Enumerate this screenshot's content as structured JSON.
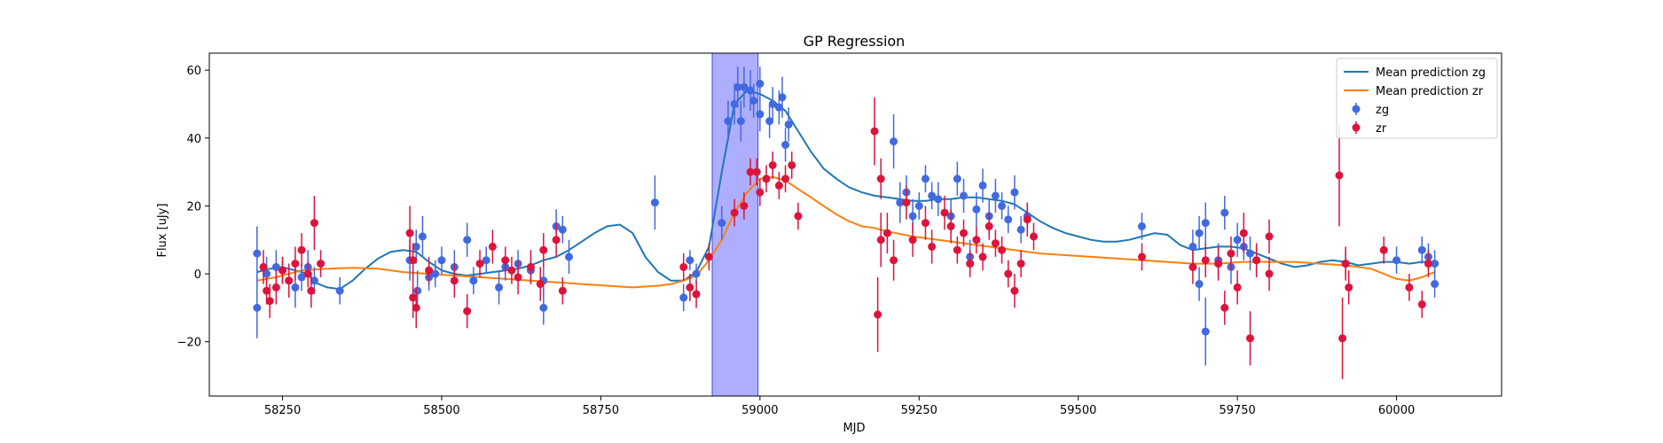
{
  "chart_data": {
    "type": "scatter",
    "title": "GP Regression",
    "xlabel": "MJD",
    "ylabel": "Flux [uJy]",
    "xlim": [
      58135,
      60165
    ],
    "ylim": [
      -36,
      65
    ],
    "xticks": [
      58250,
      58500,
      58750,
      59000,
      59250,
      59500,
      59750,
      60000
    ],
    "yticks": [
      -20,
      0,
      20,
      40,
      60
    ],
    "legend_position": "top-right",
    "shaded_region": {
      "x0": 58925,
      "x1": 58997,
      "color": "#aaaaff"
    },
    "colors": {
      "zg_line": "#1f77b4",
      "zr_line": "#ff7f0e",
      "zg_points": "#4169e1",
      "zr_points": "#dc143c"
    },
    "lines": [
      {
        "name": "Mean prediction zg",
        "color": "#1f77b4",
        "x": [
          58210,
          58230,
          58250,
          58270,
          58290,
          58300,
          58320,
          58340,
          58360,
          58380,
          58400,
          58420,
          58440,
          58460,
          58480,
          58500,
          58520,
          58540,
          58560,
          58580,
          58600,
          58620,
          58640,
          58660,
          58680,
          58700,
          58720,
          58740,
          58760,
          58780,
          58800,
          58820,
          58840,
          58860,
          58880,
          58900,
          58920,
          58940,
          58960,
          58980,
          59000,
          59020,
          59040,
          59060,
          59080,
          59100,
          59120,
          59140,
          59160,
          59180,
          59200,
          59220,
          59240,
          59260,
          59280,
          59300,
          59320,
          59340,
          59360,
          59380,
          59400,
          59420,
          59440,
          59460,
          59480,
          59500,
          59520,
          59540,
          59560,
          59580,
          59600,
          59620,
          59640,
          59660,
          59680,
          59700,
          59720,
          59740,
          59760,
          59780,
          59800,
          59820,
          59840,
          59860,
          59880,
          59900,
          59920,
          59940,
          59960,
          59980,
          60000,
          60020,
          60040,
          60060
        ],
        "y": [
          0.5,
          1.5,
          2.0,
          1.0,
          0,
          -2.5,
          -4.0,
          -4.5,
          -2.0,
          1.5,
          4.5,
          6.5,
          7.0,
          6.5,
          3.5,
          1.0,
          0,
          -0.5,
          0,
          0.5,
          1.0,
          1.5,
          2.5,
          4.0,
          5.0,
          7.0,
          9.5,
          12.0,
          14.0,
          14.5,
          12.0,
          5.0,
          0.5,
          -2.0,
          -2.0,
          0.5,
          8.0,
          30.0,
          50.0,
          54.0,
          53.0,
          51.0,
          48.0,
          42.0,
          36.0,
          31.0,
          28.0,
          25.5,
          24.0,
          23.0,
          22.5,
          22.0,
          21.5,
          21.5,
          22.0,
          22.0,
          22.5,
          22.5,
          22.0,
          21.5,
          20.5,
          18.0,
          15.5,
          13.5,
          12.0,
          11.0,
          10.0,
          9.5,
          9.5,
          10.0,
          11.0,
          12.0,
          11.5,
          8.5,
          7.0,
          7.5,
          8.0,
          8.0,
          7.5,
          6.0,
          4.5,
          3.0,
          2.0,
          2.5,
          3.5,
          4.0,
          3.5,
          2.5,
          3.0,
          3.5,
          3.5,
          3.0,
          3.5,
          3.5
        ]
      },
      {
        "name": "Mean prediction zr",
        "color": "#ff7f0e",
        "x": [
          58210,
          58240,
          58280,
          58320,
          58360,
          58400,
          58440,
          58480,
          58520,
          58560,
          58600,
          58640,
          58680,
          58720,
          58760,
          58800,
          58840,
          58860,
          58880,
          58900,
          58920,
          58940,
          58960,
          58980,
          59000,
          59020,
          59040,
          59060,
          59080,
          59100,
          59120,
          59140,
          59160,
          59180,
          59200,
          59240,
          59280,
          59320,
          59360,
          59400,
          59440,
          59480,
          59520,
          59560,
          59600,
          59640,
          59680,
          59720,
          59760,
          59800,
          59840,
          59880,
          59920,
          59940,
          59960,
          59980,
          60000,
          60020,
          60040,
          60060
        ],
        "y": [
          -2.0,
          -1.0,
          1.0,
          1.5,
          1.8,
          1.5,
          0.5,
          0,
          -0.5,
          -1.0,
          -1.5,
          -2.0,
          -2.5,
          -3.0,
          -3.5,
          -4.0,
          -3.5,
          -3.0,
          -2.0,
          -0.5,
          4.0,
          10.0,
          18.0,
          24.0,
          28.0,
          28.5,
          27.5,
          25.0,
          22.5,
          20.0,
          17.5,
          15.5,
          14.0,
          13.5,
          12.5,
          11.0,
          10.0,
          9.0,
          8.0,
          7.0,
          6.0,
          5.5,
          5.0,
          4.5,
          4.0,
          3.5,
          3.0,
          3.0,
          3.5,
          3.5,
          3.5,
          3.0,
          2.5,
          2.0,
          1.5,
          0,
          -1.5,
          -2.0,
          -1.0,
          0.5
        ]
      }
    ],
    "series": [
      {
        "name": "zg",
        "color": "#4169e1",
        "points": [
          [
            58210,
            6,
            8
          ],
          [
            58210,
            -10,
            9
          ],
          [
            58225,
            0,
            5
          ],
          [
            58240,
            2,
            5
          ],
          [
            58250,
            1,
            4
          ],
          [
            58260,
            -2,
            5
          ],
          [
            58270,
            -4,
            6
          ],
          [
            58280,
            -1,
            4
          ],
          [
            58290,
            2,
            5
          ],
          [
            58300,
            -2,
            4
          ],
          [
            58340,
            -5,
            4
          ],
          [
            58450,
            4,
            6
          ],
          [
            58460,
            8,
            5
          ],
          [
            58462,
            -5,
            6
          ],
          [
            58470,
            11,
            6
          ],
          [
            58480,
            -1,
            4
          ],
          [
            58490,
            0,
            4
          ],
          [
            58500,
            4,
            4
          ],
          [
            58520,
            2,
            5
          ],
          [
            58540,
            10,
            5
          ],
          [
            58550,
            -2,
            4
          ],
          [
            58570,
            4,
            4
          ],
          [
            58590,
            -4,
            5
          ],
          [
            58600,
            2,
            4
          ],
          [
            58620,
            3,
            4
          ],
          [
            58640,
            1,
            4
          ],
          [
            58660,
            -2,
            5
          ],
          [
            58660,
            -10,
            5
          ],
          [
            58680,
            14,
            5
          ],
          [
            58690,
            13,
            4
          ],
          [
            58700,
            5,
            5
          ],
          [
            58835,
            21,
            8
          ],
          [
            58880,
            -7,
            4
          ],
          [
            58890,
            4,
            3
          ],
          [
            58900,
            0,
            3
          ],
          [
            58940,
            15,
            5
          ],
          [
            58950,
            45,
            6
          ],
          [
            58960,
            50,
            6
          ],
          [
            58965,
            55,
            6
          ],
          [
            58970,
            45,
            6
          ],
          [
            58975,
            55,
            6
          ],
          [
            58985,
            54,
            6
          ],
          [
            58990,
            51,
            5
          ],
          [
            59000,
            56,
            5
          ],
          [
            59000,
            47,
            5
          ],
          [
            59015,
            45,
            5
          ],
          [
            59020,
            50,
            5
          ],
          [
            59030,
            49,
            5
          ],
          [
            59035,
            52,
            6
          ],
          [
            59040,
            38,
            5
          ],
          [
            59045,
            44,
            5
          ],
          [
            59210,
            39,
            8
          ],
          [
            59220,
            21,
            6
          ],
          [
            59230,
            24,
            5
          ],
          [
            59240,
            17,
            5
          ],
          [
            59250,
            20,
            4
          ],
          [
            59260,
            28,
            4
          ],
          [
            59270,
            23,
            4
          ],
          [
            59280,
            22,
            5
          ],
          [
            59300,
            17,
            5
          ],
          [
            59310,
            28,
            5
          ],
          [
            59320,
            23,
            5
          ],
          [
            59330,
            5,
            5
          ],
          [
            59340,
            19,
            5
          ],
          [
            59350,
            26,
            5
          ],
          [
            59360,
            17,
            5
          ],
          [
            59370,
            23,
            5
          ],
          [
            59380,
            20,
            4
          ],
          [
            59390,
            16,
            4
          ],
          [
            59400,
            24,
            5
          ],
          [
            59410,
            13,
            4
          ],
          [
            59420,
            17,
            4
          ],
          [
            59600,
            14,
            4
          ],
          [
            59680,
            8,
            5
          ],
          [
            59690,
            12,
            5
          ],
          [
            59690,
            -3,
            5
          ],
          [
            59700,
            15,
            6
          ],
          [
            59700,
            -17,
            10
          ],
          [
            59720,
            4,
            5
          ],
          [
            59730,
            18,
            5
          ],
          [
            59740,
            2,
            5
          ],
          [
            59750,
            10,
            5
          ],
          [
            59760,
            8,
            4
          ],
          [
            59770,
            6,
            5
          ],
          [
            59780,
            4,
            5
          ],
          [
            59920,
            3,
            4
          ],
          [
            60000,
            4,
            4
          ],
          [
            60040,
            7,
            4
          ],
          [
            60050,
            5,
            4
          ],
          [
            60060,
            3,
            4
          ],
          [
            60060,
            -3,
            4
          ]
        ]
      },
      {
        "name": "zr",
        "color": "#dc143c",
        "points": [
          [
            58220,
            2,
            5
          ],
          [
            58225,
            -5,
            4
          ],
          [
            58230,
            -8,
            5
          ],
          [
            58240,
            -4,
            5
          ],
          [
            58250,
            1,
            4
          ],
          [
            58260,
            -2,
            5
          ],
          [
            58270,
            3,
            5
          ],
          [
            58280,
            7,
            5
          ],
          [
            58290,
            0,
            4
          ],
          [
            58295,
            -5,
            5
          ],
          [
            58300,
            15,
            8
          ],
          [
            58310,
            3,
            4
          ],
          [
            58450,
            12,
            8
          ],
          [
            58455,
            4,
            5
          ],
          [
            58455,
            -7,
            6
          ],
          [
            58460,
            -10,
            6
          ],
          [
            58480,
            1,
            4
          ],
          [
            58520,
            -2,
            5
          ],
          [
            58540,
            -11,
            5
          ],
          [
            58560,
            3,
            4
          ],
          [
            58580,
            8,
            5
          ],
          [
            58600,
            4,
            4
          ],
          [
            58610,
            1,
            4
          ],
          [
            58620,
            -1,
            5
          ],
          [
            58640,
            2,
            5
          ],
          [
            58655,
            -3,
            5
          ],
          [
            58660,
            7,
            5
          ],
          [
            58680,
            10,
            5
          ],
          [
            58690,
            -5,
            4
          ],
          [
            58880,
            2,
            4
          ],
          [
            58890,
            -4,
            4
          ],
          [
            58900,
            -6,
            4
          ],
          [
            58920,
            5,
            4
          ],
          [
            58960,
            18,
            4
          ],
          [
            58975,
            20,
            4
          ],
          [
            58985,
            30,
            4
          ],
          [
            58995,
            30,
            4
          ],
          [
            59000,
            24,
            4
          ],
          [
            59010,
            28,
            4
          ],
          [
            59020,
            32,
            4
          ],
          [
            59030,
            26,
            4
          ],
          [
            59040,
            28,
            4
          ],
          [
            59050,
            32,
            4
          ],
          [
            59060,
            17,
            4
          ],
          [
            59180,
            42,
            10
          ],
          [
            59185,
            -12,
            11
          ],
          [
            59190,
            10,
            8
          ],
          [
            59190,
            28,
            6
          ],
          [
            59200,
            12,
            6
          ],
          [
            59210,
            4,
            6
          ],
          [
            59230,
            21,
            5
          ],
          [
            59240,
            10,
            5
          ],
          [
            59260,
            15,
            5
          ],
          [
            59270,
            8,
            5
          ],
          [
            59290,
            18,
            5
          ],
          [
            59300,
            14,
            5
          ],
          [
            59310,
            7,
            4
          ],
          [
            59320,
            12,
            4
          ],
          [
            59330,
            3,
            4
          ],
          [
            59340,
            10,
            4
          ],
          [
            59350,
            5,
            4
          ],
          [
            59360,
            14,
            4
          ],
          [
            59370,
            9,
            4
          ],
          [
            59380,
            7,
            4
          ],
          [
            59390,
            0,
            4
          ],
          [
            59400,
            -5,
            5
          ],
          [
            59410,
            3,
            4
          ],
          [
            59420,
            16,
            5
          ],
          [
            59430,
            11,
            4
          ],
          [
            59600,
            5,
            4
          ],
          [
            59680,
            2,
            5
          ],
          [
            59700,
            4,
            5
          ],
          [
            59720,
            3,
            5
          ],
          [
            59730,
            -10,
            5
          ],
          [
            59740,
            6,
            5
          ],
          [
            59750,
            -4,
            5
          ],
          [
            59760,
            12,
            6
          ],
          [
            59770,
            -19,
            8
          ],
          [
            59780,
            4,
            5
          ],
          [
            59800,
            0,
            5
          ],
          [
            59800,
            11,
            5
          ],
          [
            59910,
            29,
            15
          ],
          [
            59915,
            -19,
            12
          ],
          [
            59920,
            3,
            5
          ],
          [
            59925,
            -4,
            5
          ],
          [
            59980,
            7,
            4
          ],
          [
            60020,
            -4,
            4
          ],
          [
            60040,
            -9,
            4
          ],
          [
            60050,
            3,
            4
          ]
        ]
      }
    ],
    "legend": [
      "Mean prediction zg",
      "Mean prediction zr",
      "zg",
      "zr"
    ]
  }
}
